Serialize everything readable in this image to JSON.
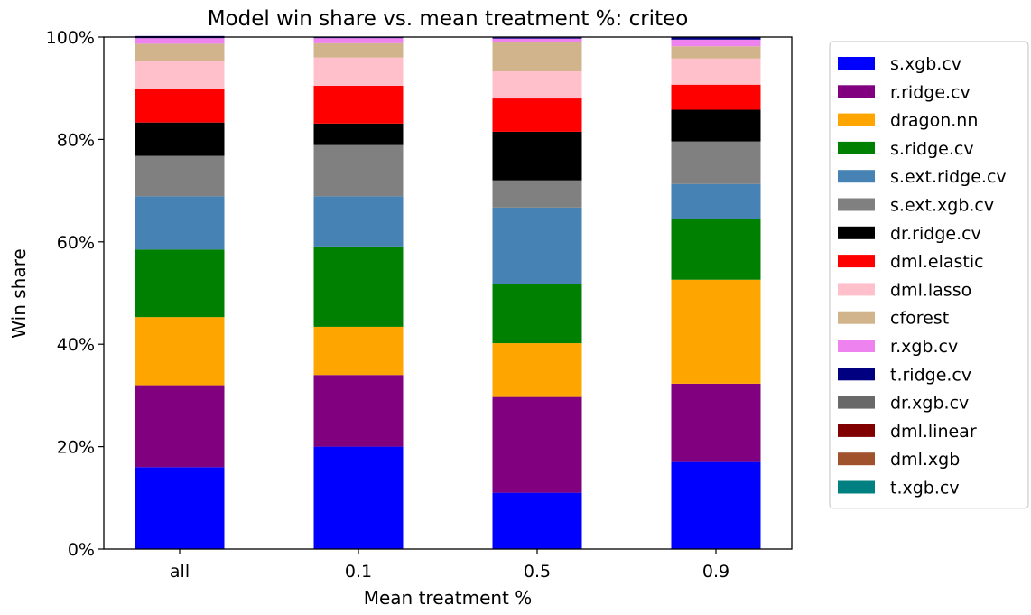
{
  "chart_data": {
    "type": "bar",
    "stacked": true,
    "title": "Model win share vs. mean treatment %: criteo",
    "xlabel": "Mean treatment %",
    "ylabel": "Win share",
    "categories": [
      "all",
      "0.1",
      "0.5",
      "0.9"
    ],
    "ylim": [
      0,
      100
    ],
    "yticks": [
      "0%",
      "20%",
      "40%",
      "60%",
      "80%",
      "100%"
    ],
    "grid": false,
    "legend_position": "outside-right",
    "series": [
      {
        "name": "s.xgb.cv",
        "color": "#0000ff",
        "values": [
          16.0,
          20.0,
          11.0,
          17.0
        ]
      },
      {
        "name": "r.ridge.cv",
        "color": "#800080",
        "values": [
          16.0,
          14.0,
          18.7,
          15.3
        ]
      },
      {
        "name": "dragon.nn",
        "color": "#ffa500",
        "values": [
          13.3,
          9.4,
          10.5,
          20.3
        ]
      },
      {
        "name": "s.ridge.cv",
        "color": "#008000",
        "values": [
          13.2,
          15.7,
          11.5,
          11.9
        ]
      },
      {
        "name": "s.ext.ridge.cv",
        "color": "#4682b4",
        "values": [
          10.4,
          9.8,
          15.0,
          6.8
        ]
      },
      {
        "name": "s.ext.xgb.cv",
        "color": "#808080",
        "values": [
          7.9,
          10.0,
          5.3,
          8.3
        ]
      },
      {
        "name": "dr.ridge.cv",
        "color": "#000000",
        "values": [
          6.5,
          4.2,
          9.5,
          6.2
        ]
      },
      {
        "name": "dml.elastic",
        "color": "#ff0000",
        "values": [
          6.5,
          7.4,
          6.5,
          4.9
        ]
      },
      {
        "name": "dml.lasso",
        "color": "#ffc0cb",
        "values": [
          5.5,
          5.5,
          5.3,
          5.1
        ]
      },
      {
        "name": "cforest",
        "color": "#d2b48c",
        "values": [
          3.4,
          2.8,
          5.8,
          2.4
        ]
      },
      {
        "name": "r.xgb.cv",
        "color": "#ee82ee",
        "values": [
          1.1,
          1.0,
          0.6,
          1.3
        ]
      },
      {
        "name": "t.ridge.cv",
        "color": "#000080",
        "values": [
          0.4,
          0.1,
          0.2,
          0.5
        ]
      },
      {
        "name": "dr.xgb.cv",
        "color": "#696969",
        "values": [
          0.0,
          0.0,
          0.1,
          0.0
        ]
      },
      {
        "name": "dml.linear",
        "color": "#800000",
        "values": [
          0.0,
          0.0,
          0.0,
          0.0
        ]
      },
      {
        "name": "dml.xgb",
        "color": "#a0522d",
        "values": [
          0.0,
          0.0,
          0.0,
          0.0
        ]
      },
      {
        "name": "t.xgb.cv",
        "color": "#008080",
        "values": [
          0.0,
          0.0,
          0.0,
          0.0
        ]
      }
    ]
  }
}
